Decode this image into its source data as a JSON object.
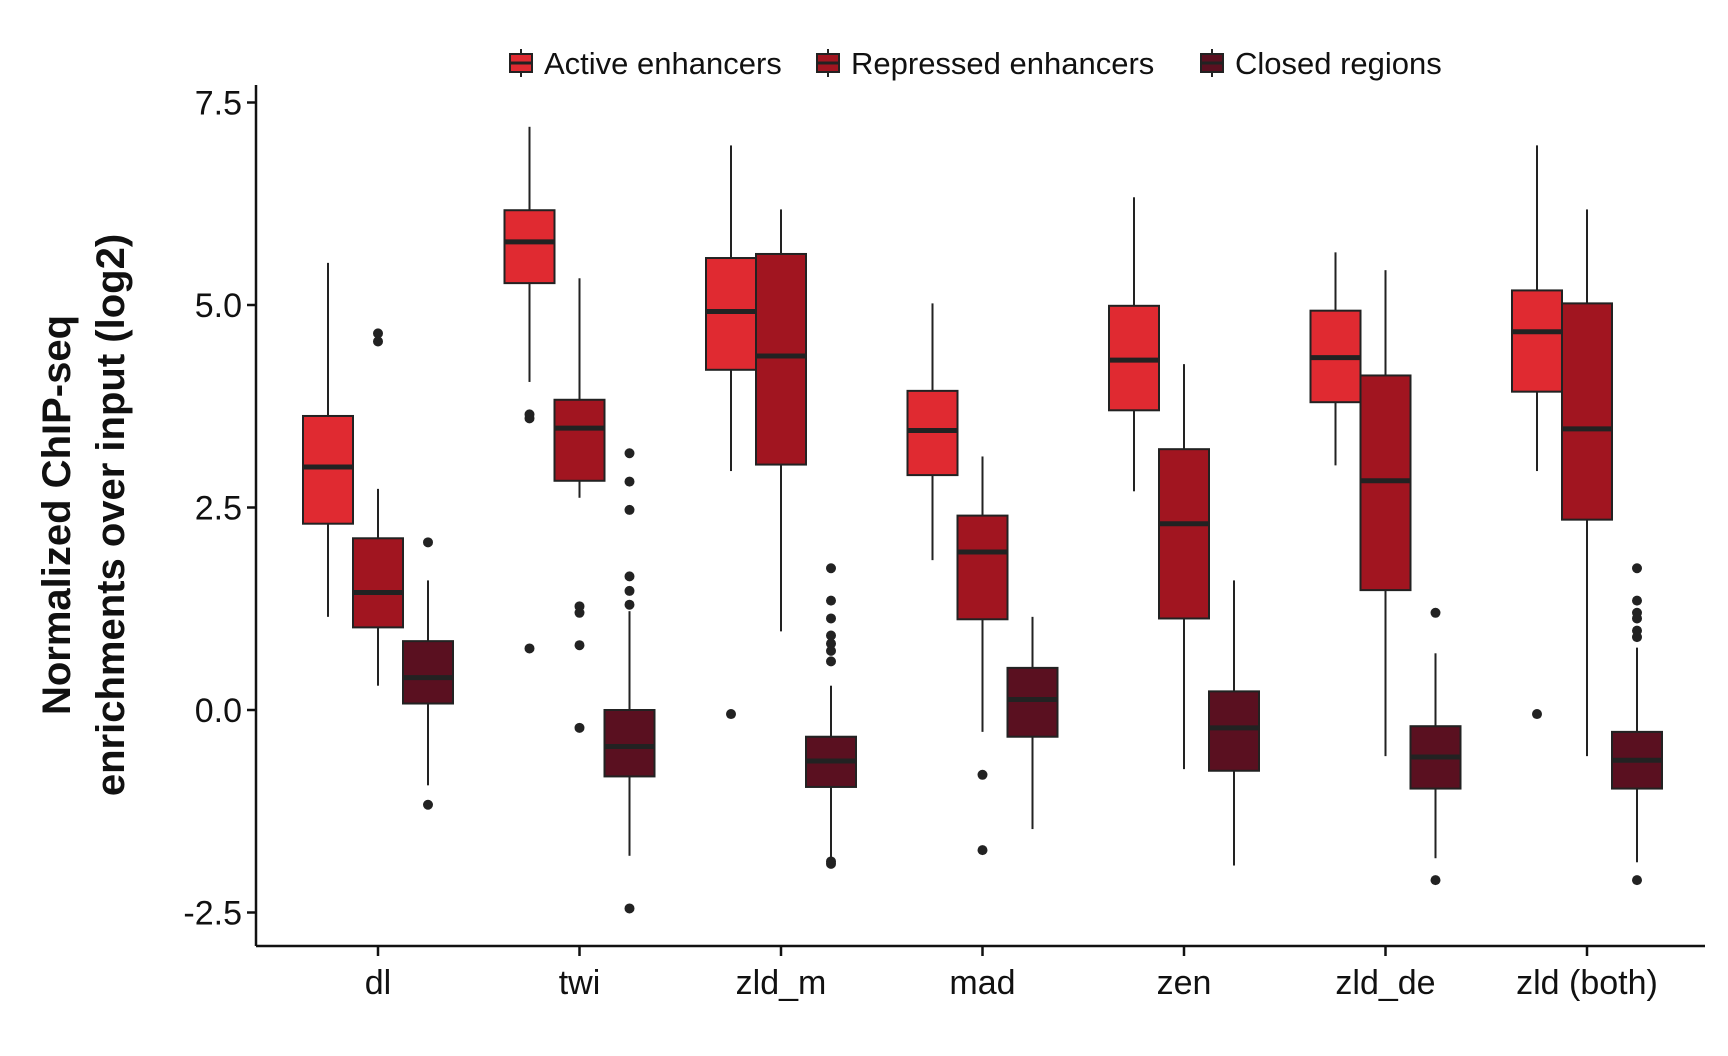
{
  "chart_data": {
    "type": "boxplot",
    "ylabel_lines": [
      "Normalized ChIP-seq",
      "enrichments over input (log2)"
    ],
    "xlabel": "",
    "ylim": [
      -2.9,
      7.7
    ],
    "yticks": [
      -2.5,
      0.0,
      2.5,
      5.0,
      7.5
    ],
    "ytick_labels": [
      "-2.5",
      "0.0",
      "2.5",
      "5.0",
      "7.5"
    ],
    "categories": [
      "dl",
      "twi",
      "zld_m",
      "mad",
      "zen",
      "zld_de",
      "zld (both)"
    ],
    "legend_position": "top",
    "series": [
      {
        "name": "Active enhancers",
        "color": "#e02a31",
        "boxes": [
          {
            "whislo": 1.15,
            "q1": 2.3,
            "med": 3.0,
            "q3": 3.63,
            "whishi": 5.52,
            "fliers": []
          },
          {
            "whislo": 4.05,
            "q1": 5.27,
            "med": 5.78,
            "q3": 6.17,
            "whishi": 7.2,
            "fliers": [
              3.6,
              3.65,
              0.76
            ]
          },
          {
            "whislo": 2.95,
            "q1": 4.2,
            "med": 4.92,
            "q3": 5.58,
            "whishi": 6.97,
            "fliers": [
              -0.05
            ]
          },
          {
            "whislo": 1.85,
            "q1": 2.9,
            "med": 3.45,
            "q3": 3.94,
            "whishi": 5.02,
            "fliers": []
          },
          {
            "whislo": 2.7,
            "q1": 3.7,
            "med": 4.32,
            "q3": 4.99,
            "whishi": 6.33,
            "fliers": []
          },
          {
            "whislo": 3.02,
            "q1": 3.8,
            "med": 4.35,
            "q3": 4.93,
            "whishi": 5.65,
            "fliers": []
          },
          {
            "whislo": 2.95,
            "q1": 3.93,
            "med": 4.67,
            "q3": 5.18,
            "whishi": 6.97,
            "fliers": [
              -0.05
            ]
          }
        ]
      },
      {
        "name": "Repressed enhancers",
        "color": "#a11520",
        "boxes": [
          {
            "whislo": 0.3,
            "q1": 1.02,
            "med": 1.45,
            "q3": 2.12,
            "whishi": 2.73,
            "fliers": [
              4.55,
              4.65
            ]
          },
          {
            "whislo": 2.62,
            "q1": 2.83,
            "med": 3.48,
            "q3": 3.83,
            "whishi": 5.33,
            "fliers": [
              1.28,
              1.2,
              0.8,
              -0.22
            ]
          },
          {
            "whislo": 0.97,
            "q1": 3.03,
            "med": 4.37,
            "q3": 5.63,
            "whishi": 6.18,
            "fliers": []
          },
          {
            "whislo": -0.27,
            "q1": 1.12,
            "med": 1.95,
            "q3": 2.4,
            "whishi": 3.13,
            "fliers": [
              -0.8,
              -1.73
            ]
          },
          {
            "whislo": -0.73,
            "q1": 1.13,
            "med": 2.3,
            "q3": 3.22,
            "whishi": 4.27,
            "fliers": []
          },
          {
            "whislo": -0.57,
            "q1": 1.48,
            "med": 2.83,
            "q3": 4.13,
            "whishi": 5.43,
            "fliers": []
          },
          {
            "whislo": -0.57,
            "q1": 2.35,
            "med": 3.47,
            "q3": 5.02,
            "whishi": 6.18,
            "fliers": []
          }
        ]
      },
      {
        "name": "Closed regions",
        "color": "#5a1020",
        "boxes": [
          {
            "whislo": -0.93,
            "q1": 0.08,
            "med": 0.4,
            "q3": 0.85,
            "whishi": 1.6,
            "fliers": [
              2.07,
              -1.17
            ]
          },
          {
            "whislo": -1.8,
            "q1": -0.82,
            "med": -0.45,
            "q3": 0.0,
            "whishi": 1.22,
            "fliers": [
              3.17,
              2.82,
              2.47,
              1.65,
              1.47,
              1.3,
              -2.45
            ]
          },
          {
            "whislo": -1.85,
            "q1": -0.95,
            "med": -0.63,
            "q3": -0.33,
            "whishi": 0.3,
            "fliers": [
              1.75,
              1.35,
              1.13,
              0.92,
              0.82,
              0.73,
              0.6,
              -1.9,
              -1.87
            ]
          },
          {
            "whislo": -1.47,
            "q1": -0.33,
            "med": 0.13,
            "q3": 0.52,
            "whishi": 1.15,
            "fliers": []
          },
          {
            "whislo": -1.92,
            "q1": -0.75,
            "med": -0.22,
            "q3": 0.23,
            "whishi": 1.6,
            "fliers": []
          },
          {
            "whislo": -1.83,
            "q1": -0.97,
            "med": -0.58,
            "q3": -0.2,
            "whishi": 0.7,
            "fliers": [
              1.2,
              -2.1
            ]
          },
          {
            "whislo": -1.88,
            "q1": -0.97,
            "med": -0.62,
            "q3": -0.27,
            "whishi": 0.77,
            "fliers": [
              1.75,
              1.35,
              1.2,
              1.13,
              0.98,
              0.9,
              -2.1
            ]
          }
        ]
      }
    ]
  }
}
